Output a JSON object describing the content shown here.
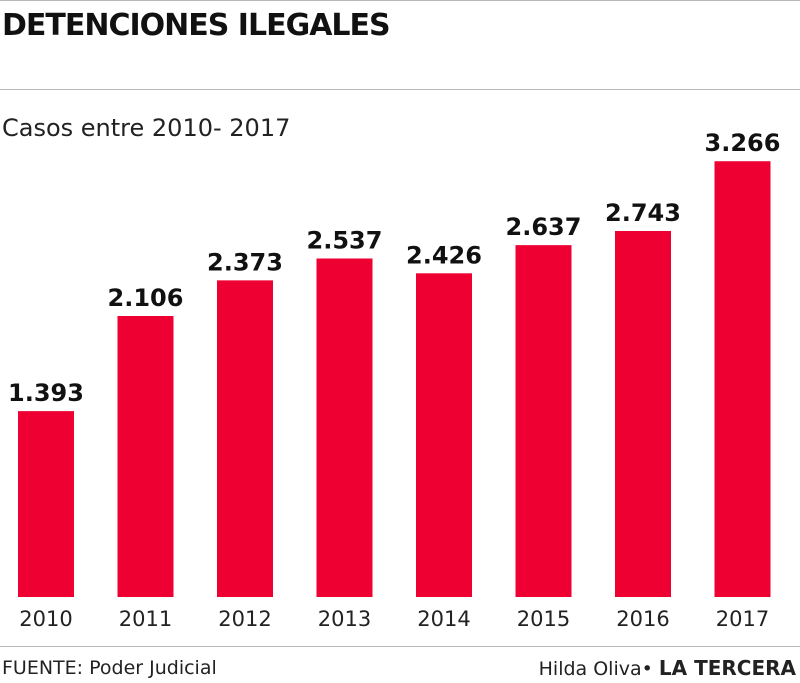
{
  "title": "DETENCIONES ILEGALES",
  "chart_data": {
    "type": "bar",
    "subtitle": "Casos entre 2010- 2017",
    "categories": [
      "2010",
      "2011",
      "2012",
      "2013",
      "2014",
      "2015",
      "2016",
      "2017"
    ],
    "values": [
      1393,
      2106,
      2373,
      2537,
      2426,
      2637,
      2743,
      3266
    ],
    "value_labels": [
      "1.393",
      "2.106",
      "2.373",
      "2.537",
      "2.426",
      "2.637",
      "2.743",
      "3.266"
    ],
    "ylim": [
      0,
      3500
    ],
    "grid": false,
    "legend": "none",
    "bar_color": "#ee0033"
  },
  "footer": {
    "source": "FUENTE: Poder Judicial",
    "author": "Hilda Oliva",
    "brand": "LA TERCERA"
  }
}
